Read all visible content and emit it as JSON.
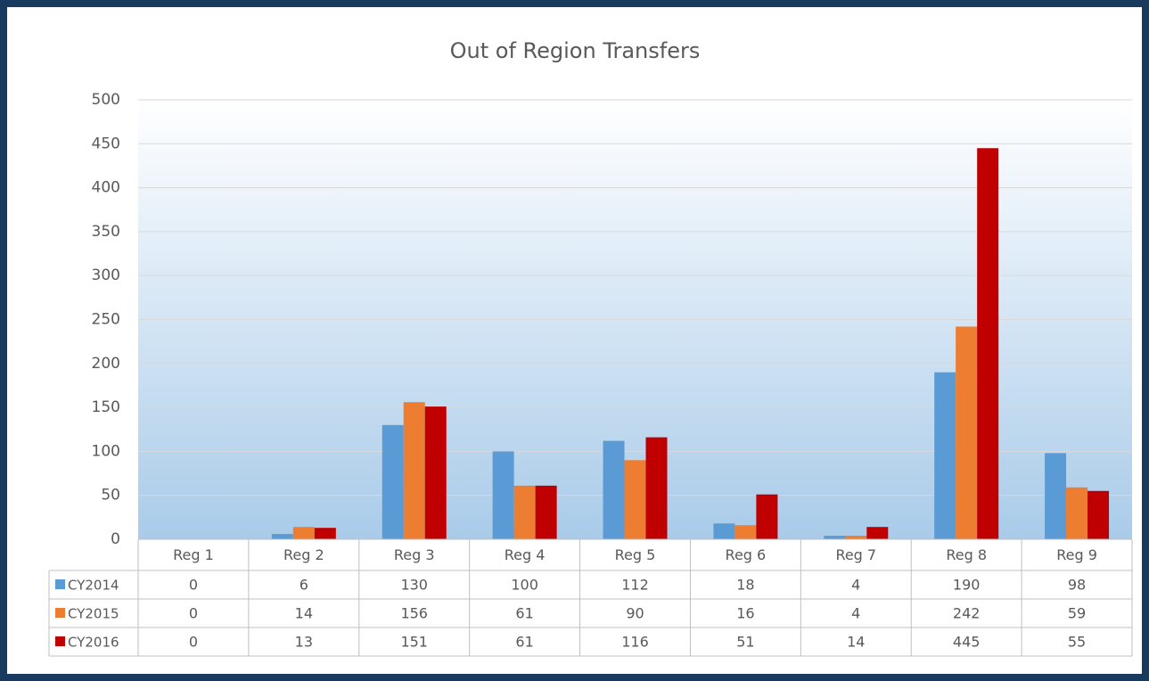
{
  "chart_data": {
    "type": "bar",
    "title": "Out of Region Transfers",
    "categories": [
      "Reg 1",
      "Reg 2",
      "Reg 3",
      "Reg 4",
      "Reg 5",
      "Reg 6",
      "Reg 7",
      "Reg 8",
      "Reg 9"
    ],
    "series": [
      {
        "name": "CY2014",
        "color": "#5b9bd5",
        "values": [
          0,
          6,
          130,
          100,
          112,
          18,
          4,
          190,
          98
        ]
      },
      {
        "name": "CY2015",
        "color": "#ed7d31",
        "values": [
          0,
          14,
          156,
          61,
          90,
          16,
          4,
          242,
          59
        ]
      },
      {
        "name": "CY2016",
        "color": "#c00000",
        "values": [
          0,
          13,
          151,
          61,
          116,
          51,
          14,
          445,
          55
        ]
      }
    ],
    "ylim": [
      0,
      500
    ],
    "yticks": [
      0,
      50,
      100,
      150,
      200,
      250,
      300,
      350,
      400,
      450,
      500
    ],
    "grid": true,
    "data_table": true
  }
}
